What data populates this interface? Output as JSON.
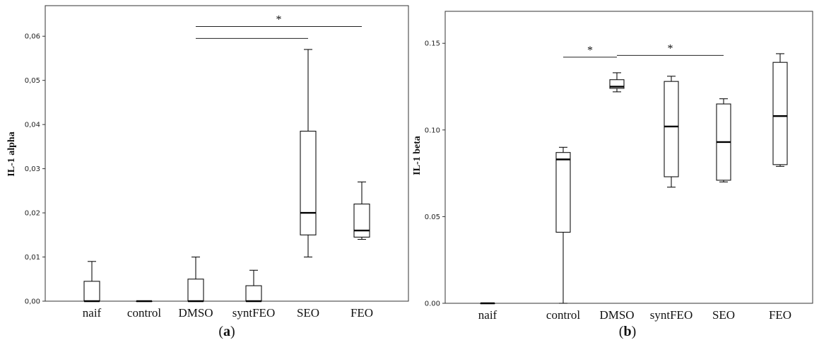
{
  "chart_data": [
    {
      "type": "boxplot",
      "panel_label": {
        "open": "(",
        "letter": "a",
        "close": ")"
      },
      "ylabel": "IL-1 alpha",
      "ylim": [
        0,
        0.065
      ],
      "yticks": [
        0,
        0.01,
        0.02,
        0.03,
        0.04,
        0.05,
        0.06
      ],
      "ytick_labels": [
        "0,00",
        "0,01",
        "0,02",
        "0,03",
        "0,04",
        "0,05",
        "0,06"
      ],
      "categories": [
        "naif",
        "control",
        "DMSO",
        "syntFEO",
        "SEO",
        "FEO"
      ],
      "boxes": [
        {
          "min": 0,
          "q1": 0,
          "median": 0,
          "q3": 0.0045,
          "max": 0.009
        },
        {
          "min": 0,
          "q1": 0,
          "median": 0,
          "q3": 0,
          "max": 0
        },
        {
          "min": 0,
          "q1": 0,
          "median": 0,
          "q3": 0.005,
          "max": 0.01
        },
        {
          "min": 0,
          "q1": 0,
          "median": 0,
          "q3": 0.0035,
          "max": 0.007
        },
        {
          "min": 0.01,
          "q1": 0.015,
          "median": 0.02,
          "q3": 0.0385,
          "max": 0.057
        },
        {
          "min": 0.014,
          "q1": 0.0145,
          "median": 0.016,
          "q3": 0.022,
          "max": 0.027
        }
      ],
      "significance": [
        {
          "from": "DMSO",
          "to": "SEO",
          "y": 0.0595,
          "label": ""
        },
        {
          "from": "DMSO",
          "to": "FEO",
          "y": 0.0622,
          "label": "*"
        }
      ],
      "grid": false
    },
    {
      "type": "boxplot",
      "panel_label": {
        "open": "(",
        "letter": "b",
        "close": ")"
      },
      "ylabel": "IL-1 beta",
      "ylim": [
        0,
        0.166
      ],
      "yticks": [
        0,
        0.05,
        0.1,
        0.15
      ],
      "ytick_labels": [
        "0.00",
        "0.05",
        "0.10",
        "0.15"
      ],
      "categories": [
        "naif",
        "control",
        "DMSO",
        "syntFEO",
        "SEO",
        "FEO"
      ],
      "boxes": [
        {
          "min": 0,
          "q1": 0,
          "median": 0,
          "q3": 0,
          "max": 0
        },
        {
          "min": 0,
          "q1": 0.041,
          "median": 0.083,
          "q3": 0.087,
          "max": 0.09
        },
        {
          "min": 0.122,
          "q1": 0.124,
          "median": 0.125,
          "q3": 0.129,
          "max": 0.133
        },
        {
          "min": 0.067,
          "q1": 0.073,
          "median": 0.102,
          "q3": 0.128,
          "max": 0.131
        },
        {
          "min": 0.07,
          "q1": 0.071,
          "median": 0.093,
          "q3": 0.115,
          "max": 0.118
        },
        {
          "min": 0.079,
          "q1": 0.08,
          "median": 0.108,
          "q3": 0.139,
          "max": 0.144
        }
      ],
      "significance": [
        {
          "from": "control",
          "to": "DMSO",
          "y": 0.142,
          "label": "*"
        },
        {
          "from": "DMSO",
          "to": "SEO",
          "y": 0.143,
          "label": "*"
        }
      ],
      "grid": false
    }
  ]
}
